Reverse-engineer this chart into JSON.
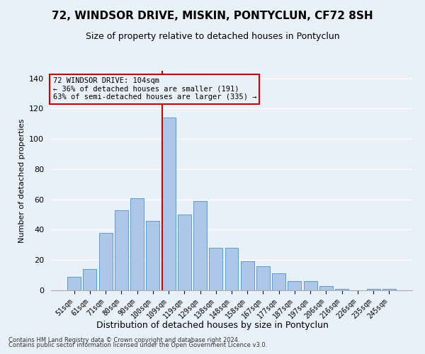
{
  "title": "72, WINDSOR DRIVE, MISKIN, PONTYCLUN, CF72 8SH",
  "subtitle": "Size of property relative to detached houses in Pontyclun",
  "xlabel": "Distribution of detached houses by size in Pontyclun",
  "ylabel": "Number of detached properties",
  "categories": [
    "51sqm",
    "61sqm",
    "71sqm",
    "80sqm",
    "90sqm",
    "100sqm",
    "109sqm",
    "119sqm",
    "129sqm",
    "138sqm",
    "148sqm",
    "158sqm",
    "167sqm",
    "177sqm",
    "187sqm",
    "197sqm",
    "206sqm",
    "216sqm",
    "226sqm",
    "235sqm",
    "245sqm"
  ],
  "values": [
    9,
    14,
    38,
    53,
    61,
    46,
    114,
    50,
    59,
    28,
    28,
    19,
    16,
    11,
    6,
    6,
    3,
    1,
    0,
    1,
    1
  ],
  "bar_color": "#aec6e8",
  "bar_edge_color": "#5b9bd5",
  "vline_x": 5.575,
  "vline_color": "#cc0000",
  "annotation_box_text": "72 WINDSOR DRIVE: 104sqm\n← 36% of detached houses are smaller (191)\n63% of semi-detached houses are larger (335) →",
  "ylim": [
    0,
    145
  ],
  "yticks": [
    0,
    20,
    40,
    60,
    80,
    100,
    120,
    140
  ],
  "bg_color": "#e8f0f8",
  "grid_color": "#ffffff",
  "footer_line1": "Contains HM Land Registry data © Crown copyright and database right 2024.",
  "footer_line2": "Contains public sector information licensed under the Open Government Licence v3.0."
}
